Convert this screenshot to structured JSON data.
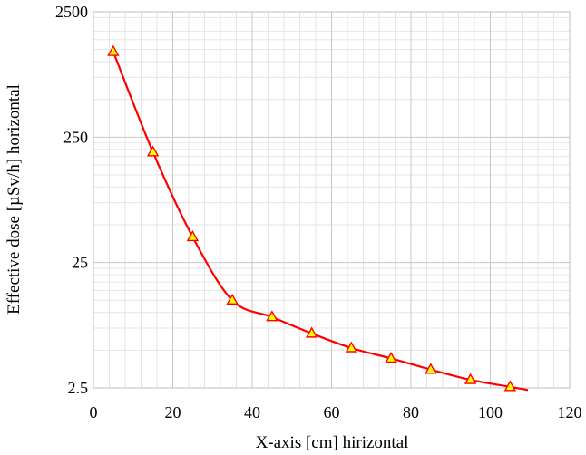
{
  "chart_data": {
    "type": "line",
    "xlabel": "X-axis [cm] hirizontal",
    "ylabel": "Effective dose [µSv/h] horizontal",
    "xlim": [
      0,
      120
    ],
    "ylim": [
      2.5,
      2500
    ],
    "y_scale": "log",
    "x_ticks": [
      "0",
      "20",
      "40",
      "60",
      "80",
      "100",
      "120"
    ],
    "y_ticks": [
      "2.5",
      "25",
      "250",
      "2500"
    ],
    "grid": true,
    "series": [
      {
        "line_color": "#ff0000",
        "marker": "triangle",
        "marker_fill": "#ffff00",
        "x": [
          5,
          15,
          25,
          35,
          45,
          55,
          65,
          75,
          85,
          95,
          105
        ],
        "y": [
          1200,
          190,
          40,
          12.5,
          9.2,
          6.8,
          5.2,
          4.3,
          3.5,
          2.9,
          2.55
        ]
      }
    ]
  }
}
